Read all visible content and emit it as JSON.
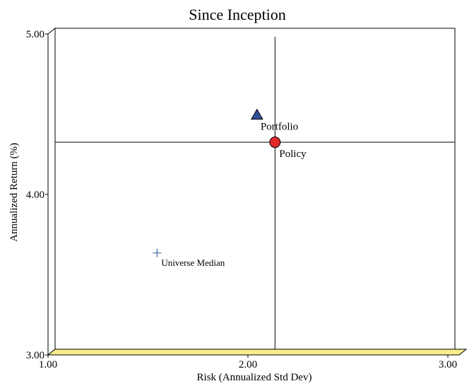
{
  "chart_data": {
    "type": "scatter",
    "title": "Since Inception",
    "xlabel": "Risk (Annualized Std Dev)",
    "ylabel": "Annualized Return (%)",
    "xlim": [
      1.0,
      3.0
    ],
    "ylim": [
      3.0,
      5.0
    ],
    "xticks": [
      {
        "value": 1.0,
        "label": "1.00"
      },
      {
        "value": 2.0,
        "label": "2.00"
      },
      {
        "value": 3.0,
        "label": "3.00"
      }
    ],
    "yticks": [
      {
        "value": 3.0,
        "label": "3.00"
      },
      {
        "value": 4.0,
        "label": "4.00"
      },
      {
        "value": 5.0,
        "label": "5.00"
      }
    ],
    "crosshair": {
      "x": 2.1,
      "y": 4.29
    },
    "points": [
      {
        "label": "Portfolio",
        "x": 2.01,
        "y": 4.46,
        "marker": "triangle",
        "color": "#2e4f9a"
      },
      {
        "label": "Policy",
        "x": 2.1,
        "y": 4.29,
        "marker": "circle",
        "color": "#e02a2a"
      },
      {
        "label": "Universe Median",
        "x": 1.51,
        "y": 3.6,
        "marker": "plus",
        "color": "#2e4f9a"
      }
    ],
    "floor_color": "#f7f08a",
    "grid": false
  }
}
